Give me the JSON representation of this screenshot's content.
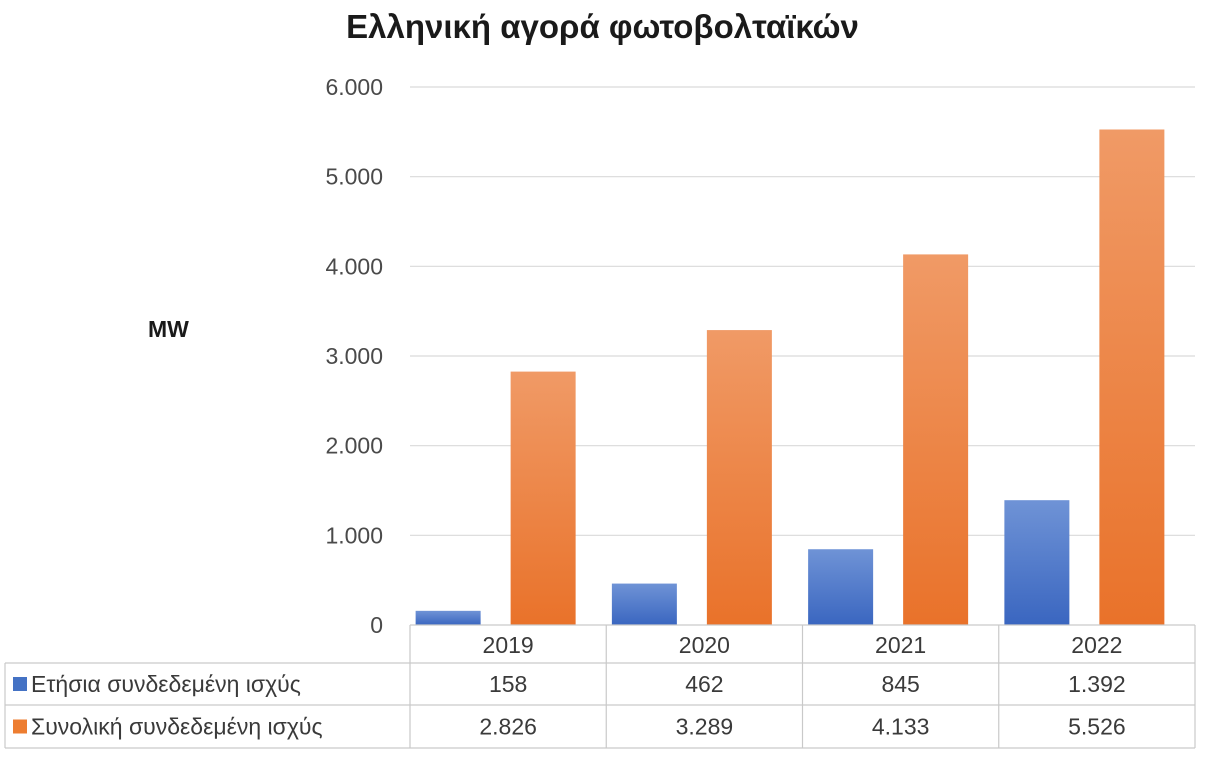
{
  "chart_data": {
    "type": "bar",
    "title": "Ελληνική αγορά φωτοβολταϊκών",
    "ylabel": "MW",
    "xlabel": "",
    "categories": [
      "2019",
      "2020",
      "2021",
      "2022"
    ],
    "ylim": [
      0,
      6000
    ],
    "yticks": [
      "0",
      "1.000",
      "2.000",
      "3.000",
      "4.000",
      "5.000",
      "6.000"
    ],
    "grid": true,
    "legend": "data-table",
    "series": [
      {
        "name": "Ετήσια συνδεδεμένη ισχύς",
        "color": "#4472c4",
        "values": [
          158,
          462,
          845,
          1392
        ],
        "labels": [
          "158",
          "462",
          "845",
          "1.392"
        ]
      },
      {
        "name": "Συνολική συνδεδεμένη ισχύς",
        "color": "#ed7d31",
        "values": [
          2826,
          3289,
          4133,
          5526
        ],
        "labels": [
          "2.826",
          "3.289",
          "4.133",
          "5.526"
        ]
      }
    ]
  }
}
